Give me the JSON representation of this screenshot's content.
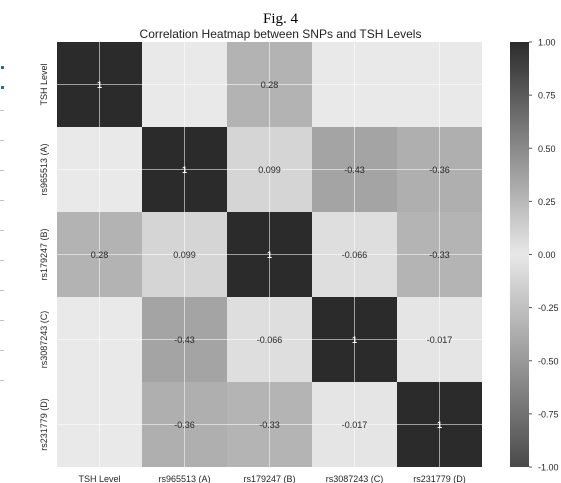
{
  "figure": {
    "label": "Fig. 4"
  },
  "chart_data": {
    "type": "heatmap",
    "title": "Correlation Heatmap between SNPs and TSH Levels",
    "xlabel": "",
    "ylabel": "",
    "rows": [
      "TSH Level",
      "rs965513 (A)",
      "rs179247 (B)",
      "rs3087243 (C)",
      "rs231779 (D)"
    ],
    "columns": [
      "TSH Level",
      "rs965513 (A)",
      "rs179247 (B)",
      "rs3087243 (C)",
      "rs231779 (D)"
    ],
    "values": [
      [
        1,
        null,
        0.28,
        null,
        null
      ],
      [
        null,
        1,
        0.099,
        -0.43,
        -0.36
      ],
      [
        0.28,
        0.099,
        1,
        -0.066,
        -0.33
      ],
      [
        null,
        -0.43,
        -0.066,
        1,
        -0.017
      ],
      [
        null,
        -0.36,
        -0.33,
        -0.017,
        1
      ]
    ],
    "value_labels": [
      [
        "1",
        "",
        "0.28",
        "",
        ""
      ],
      [
        "",
        "1",
        "0.099",
        "-0.43",
        "-0.36"
      ],
      [
        "0.28",
        "0.099",
        "1",
        "-0.066",
        "-0.33"
      ],
      [
        "",
        "-0.43",
        "-0.066",
        "1",
        "-0.017"
      ],
      [
        "",
        "-0.36",
        "-0.33",
        "-0.017",
        "1"
      ]
    ],
    "colorbar": {
      "range": [
        -1,
        1
      ],
      "tick_values": [
        1,
        0.75,
        0.5,
        0.25,
        0,
        -0.25,
        -0.5,
        -0.75,
        -1
      ],
      "tick_labels": [
        "1.00",
        "0.75",
        "0.50",
        "0.25",
        "0.00",
        "-0.25",
        "-0.50",
        "-0.75",
        "-1.00"
      ],
      "colormap": "grayscale",
      "low_color": "#4a4a4a",
      "mid_color": "#e8e8e8",
      "high_color": "#2b2b2b"
    },
    "empty_cell_color": "#e9e9e9",
    "grid": true
  }
}
